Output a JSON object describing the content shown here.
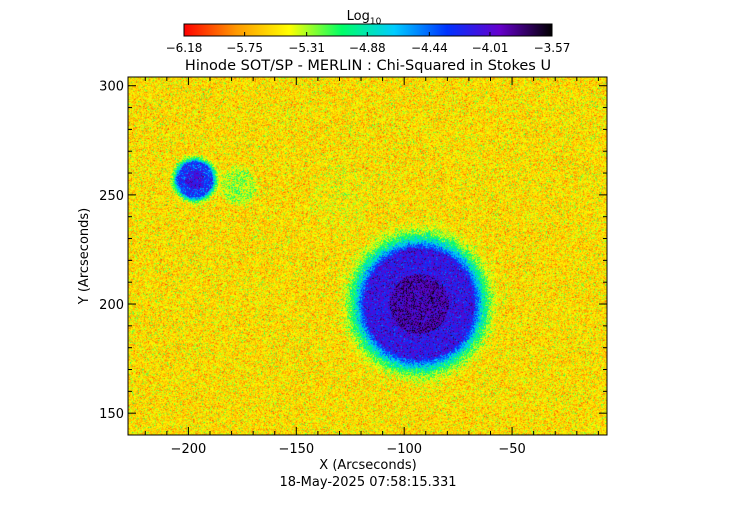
{
  "chart_data": {
    "type": "heatmap",
    "title": "Hinode SOT/SP - MERLIN : Chi-Squared in Stokes U",
    "xlabel": "X (Arcseconds)",
    "ylabel": "Y (Arcseconds)",
    "xlim": [
      -228,
      -6
    ],
    "ylim": [
      140,
      304
    ],
    "x_ticks": [
      -200,
      -150,
      -100,
      -50
    ],
    "x_tick_labels": [
      "−200",
      "−150",
      "−100",
      "−50"
    ],
    "y_ticks": [
      150,
      200,
      250,
      300
    ],
    "y_tick_labels": [
      "150",
      "200",
      "250",
      "300"
    ],
    "colorbar": {
      "title_base": "Log",
      "title_sub": "10",
      "range": [
        -6.18,
        -3.57
      ],
      "ticks": [
        -6.18,
        -5.75,
        -5.31,
        -4.88,
        -4.44,
        -4.01,
        -3.57
      ],
      "tick_labels": [
        "−6.18",
        "−5.75",
        "−5.31",
        "−4.88",
        "−4.44",
        "−4.01",
        "−3.57"
      ],
      "colors": [
        "#ff0000",
        "#ff9900",
        "#ffff00",
        "#00ff66",
        "#00ccff",
        "#0033ff",
        "#6600cc",
        "#000000"
      ]
    },
    "features": [
      {
        "x": -93,
        "y": 200,
        "radius": 25,
        "peak_log": -4.1
      },
      {
        "x": -197,
        "y": 257,
        "radius": 8,
        "peak_log": -4.3
      },
      {
        "x": -177,
        "y": 254,
        "radius": 7,
        "peak_log": -5.3
      },
      {
        "x": -130,
        "y": 250,
        "radius": 12,
        "peak_log": -5.5
      }
    ],
    "background_log": -5.55
  },
  "footer": {
    "timestamp": "18-May-2025 07:58:15.331"
  }
}
